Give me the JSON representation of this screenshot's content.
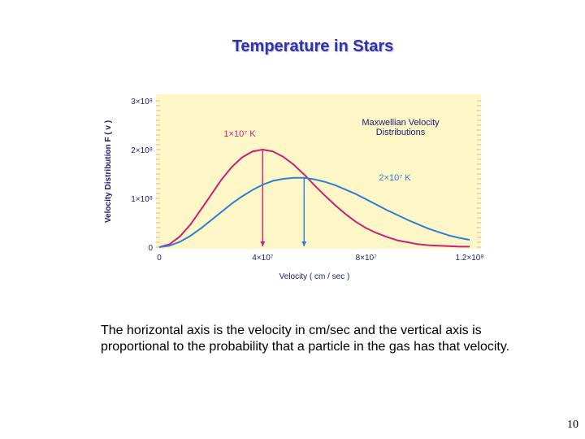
{
  "slide": {
    "title": "Temperature in Stars",
    "caption": "The horizontal axis is the velocity in cm/sec and the vertical axis is proportional to the probability that a particle in the gas has that velocity.",
    "page_number": "10"
  },
  "colors": {
    "plot_background": "#fdf6c6",
    "title": "#3333aa",
    "axis_text": "#1c1c6e",
    "series_1": "#cc1f7a",
    "series_2": "#2f7fd6"
  },
  "chart_data": {
    "type": "line",
    "title": "Maxwellian Velocity Distributions",
    "xlabel": "Velocity ( cm / sec )",
    "ylabel": "Velocity Distribution F ( v )",
    "xlim": [
      0,
      120000000
    ],
    "ylim": [
      0,
      300000000
    ],
    "x_ticks": [
      {
        "value": 0,
        "label": "0"
      },
      {
        "value": 40000000,
        "label": "4×10⁷"
      },
      {
        "value": 80000000,
        "label": "8×10⁷"
      },
      {
        "value": 120000000,
        "label": "1.2×10⁸"
      }
    ],
    "y_ticks": [
      {
        "value": 0,
        "label": "0"
      },
      {
        "value": 100000000,
        "label": "1×10⁸"
      },
      {
        "value": 200000000,
        "label": "2×10⁸"
      },
      {
        "value": 300000000,
        "label": "3×10⁸"
      }
    ],
    "grid": false,
    "series": [
      {
        "name": "1×10⁷ K",
        "color": "#cc1f7a",
        "peak": {
          "x": 40000000,
          "y": 200000000
        },
        "x": [
          0,
          4000000,
          8000000,
          12000000,
          16000000,
          20000000,
          24000000,
          28000000,
          32000000,
          36000000,
          40000000,
          44000000,
          48000000,
          52000000,
          56000000,
          60000000,
          64000000,
          68000000,
          72000000,
          76000000,
          80000000,
          84000000,
          88000000,
          92000000,
          96000000,
          100000000,
          104000000,
          108000000,
          112000000,
          116000000,
          120000000
        ],
        "y": [
          0,
          6000000,
          22000000,
          46000000,
          76000000,
          107000000,
          138000000,
          164000000,
          184000000,
          196000000,
          200000000,
          196000000,
          185000000,
          169000000,
          149000000,
          127000000,
          106000000,
          86000000,
          68000000,
          52000000,
          39000000,
          29000000,
          21000000,
          14000000,
          10000000,
          6000000,
          4000000,
          3000000,
          2000000,
          1000000,
          1000000
        ]
      },
      {
        "name": "2×10⁷ K",
        "color": "#2f7fd6",
        "peak": {
          "x": 56000000,
          "y": 142000000
        },
        "x": [
          0,
          4000000,
          8000000,
          12000000,
          16000000,
          20000000,
          24000000,
          28000000,
          32000000,
          36000000,
          40000000,
          44000000,
          48000000,
          52000000,
          56000000,
          60000000,
          64000000,
          68000000,
          72000000,
          76000000,
          80000000,
          84000000,
          88000000,
          92000000,
          96000000,
          100000000,
          104000000,
          108000000,
          112000000,
          116000000,
          120000000
        ],
        "y": [
          0,
          3000000,
          11000000,
          23000000,
          38000000,
          55000000,
          72000000,
          89000000,
          104000000,
          117000000,
          128000000,
          136000000,
          140000000,
          142000000,
          142000000,
          139000000,
          134000000,
          127000000,
          118000000,
          109000000,
          98000000,
          87000000,
          76000000,
          66000000,
          56000000,
          47000000,
          38000000,
          31000000,
          24000000,
          19000000,
          15000000
        ]
      }
    ]
  }
}
